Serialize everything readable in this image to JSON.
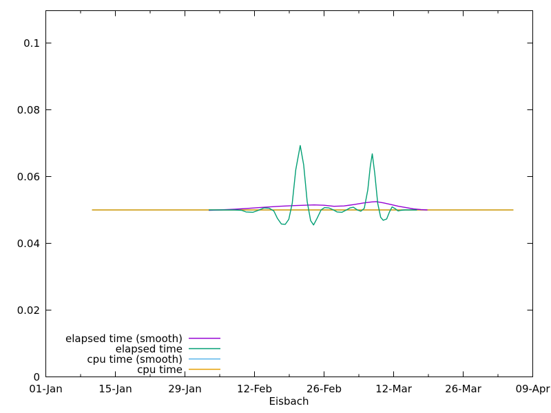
{
  "chart_data": {
    "type": "line",
    "title": "",
    "xlabel": "Eisbach",
    "ylabel": "",
    "background": "#ffffff",
    "axis_color": "#000000",
    "grid": false,
    "x_axis": {
      "range_days": [
        0,
        98
      ],
      "major_ticks": [
        {
          "day": 0,
          "label": "01-Jan"
        },
        {
          "day": 14,
          "label": "15-Jan"
        },
        {
          "day": 28,
          "label": "29-Jan"
        },
        {
          "day": 42,
          "label": "12-Feb"
        },
        {
          "day": 56,
          "label": "26-Feb"
        },
        {
          "day": 70,
          "label": "12-Mar"
        },
        {
          "day": 84,
          "label": "26-Mar"
        },
        {
          "day": 98,
          "label": "09-Apr"
        }
      ],
      "minor_tick_days": [
        7,
        21,
        35,
        49,
        63,
        77,
        91
      ]
    },
    "y_axis": {
      "range": [
        0,
        0.1097
      ],
      "major_ticks": [
        {
          "value": 0,
          "label": "0"
        },
        {
          "value": 0.02,
          "label": "0.02"
        },
        {
          "value": 0.04,
          "label": "0.04"
        },
        {
          "value": 0.06,
          "label": "0.06"
        },
        {
          "value": 0.08,
          "label": "0.08"
        },
        {
          "value": 0.1,
          "label": "0.1"
        }
      ]
    },
    "legend": {
      "position": "bottom-left-inside",
      "entries": [
        {
          "label": "elapsed time (smooth)",
          "color": "#9400d3"
        },
        {
          "label": "elapsed time",
          "color": "#009e73"
        },
        {
          "label": "cpu time (smooth)",
          "color": "#56b4e9"
        },
        {
          "label": "cpu time",
          "color": "#e69f00"
        }
      ]
    },
    "series": [
      {
        "name": "elapsed time (smooth)",
        "color": "#9400d3",
        "points": [
          [
            32.8,
            0.0499
          ],
          [
            35,
            0.05
          ],
          [
            38,
            0.0502
          ],
          [
            41,
            0.0505
          ],
          [
            44,
            0.0508
          ],
          [
            47,
            0.0511
          ],
          [
            50,
            0.0513
          ],
          [
            52,
            0.0514
          ],
          [
            54,
            0.0515
          ],
          [
            56,
            0.0514
          ],
          [
            58,
            0.0511
          ],
          [
            60,
            0.0512
          ],
          [
            62,
            0.0516
          ],
          [
            64,
            0.0521
          ],
          [
            65.5,
            0.0524
          ],
          [
            66.5,
            0.0525
          ],
          [
            68,
            0.0521
          ],
          [
            69.5,
            0.0516
          ],
          [
            71,
            0.0511
          ],
          [
            72.5,
            0.0507
          ],
          [
            74,
            0.0503
          ],
          [
            75.5,
            0.0501
          ],
          [
            76.8,
            0.05
          ]
        ]
      },
      {
        "name": "elapsed time",
        "color": "#009e73",
        "points": [
          [
            32.8,
            0.05
          ],
          [
            38,
            0.05
          ],
          [
            39.4,
            0.0499
          ],
          [
            40.3,
            0.0494
          ],
          [
            41.7,
            0.0493
          ],
          [
            42.8,
            0.0499
          ],
          [
            43.9,
            0.0506
          ],
          [
            45,
            0.0505
          ],
          [
            45.9,
            0.0497
          ],
          [
            46.6,
            0.0475
          ],
          [
            47.4,
            0.0458
          ],
          [
            48.2,
            0.0457
          ],
          [
            48.9,
            0.0472
          ],
          [
            49.6,
            0.052
          ],
          [
            50.3,
            0.062
          ],
          [
            51.2,
            0.0693
          ],
          [
            51.9,
            0.0635
          ],
          [
            52.6,
            0.0525
          ],
          [
            53.3,
            0.0468
          ],
          [
            53.9,
            0.0455
          ],
          [
            54.6,
            0.0475
          ],
          [
            55.4,
            0.05
          ],
          [
            56.1,
            0.0507
          ],
          [
            57,
            0.0506
          ],
          [
            57.9,
            0.05
          ],
          [
            58.6,
            0.0494
          ],
          [
            59.6,
            0.0493
          ],
          [
            60.5,
            0.05
          ],
          [
            61.2,
            0.0506
          ],
          [
            61.9,
            0.0508
          ],
          [
            62.7,
            0.05
          ],
          [
            63.4,
            0.0496
          ],
          [
            64.1,
            0.0505
          ],
          [
            64.8,
            0.056
          ],
          [
            65.3,
            0.063
          ],
          [
            65.7,
            0.0668
          ],
          [
            66.2,
            0.061
          ],
          [
            66.8,
            0.052
          ],
          [
            67.4,
            0.0478
          ],
          [
            67.9,
            0.0469
          ],
          [
            68.6,
            0.0473
          ],
          [
            69.2,
            0.0495
          ],
          [
            69.7,
            0.0509
          ],
          [
            70.3,
            0.0504
          ],
          [
            70.9,
            0.0497
          ],
          [
            71.5,
            0.0499
          ],
          [
            72.3,
            0.05
          ],
          [
            74.7,
            0.05
          ]
        ]
      },
      {
        "name": "cpu time (smooth)",
        "color": "#56b4e9",
        "points": [
          [
            9.3,
            0.05
          ],
          [
            94.1,
            0.05
          ]
        ]
      },
      {
        "name": "cpu time",
        "color": "#e69f00",
        "points": [
          [
            9.3,
            0.05
          ],
          [
            94.1,
            0.05
          ]
        ]
      }
    ]
  }
}
